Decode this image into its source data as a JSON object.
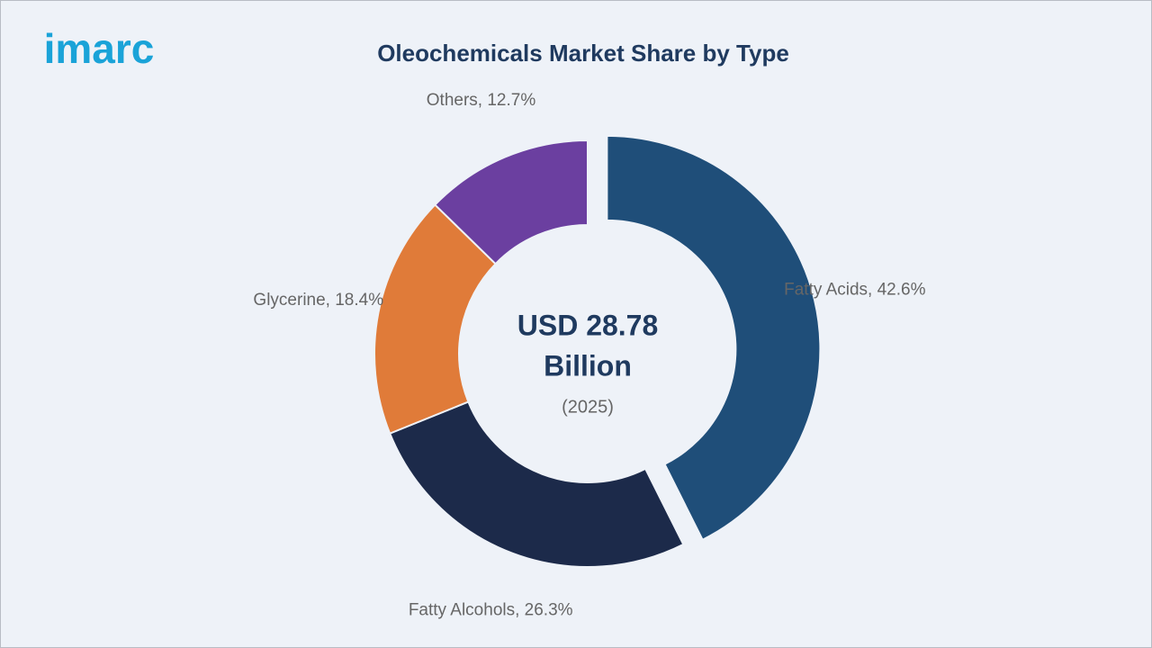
{
  "logo": "imarc",
  "chart_data": {
    "type": "donut",
    "title": "Oleochemicals Market Share by Type",
    "center_text": [
      "USD 28.78",
      "Billion"
    ],
    "center_subtext": "(2025)",
    "values": [
      42.6,
      26.3,
      18.4,
      12.7
    ],
    "value_labels": [
      "Fatty Acids, 42.6%",
      "Fatty Alcohols, 26.3%",
      "Glycerine, 18.4%",
      "Others, 12.7%"
    ],
    "colors": [
      "#1f4e79",
      "#1c2a4a",
      "#e07b39",
      "#6b3fa0"
    ],
    "exploded": [
      true,
      false,
      false,
      false
    ]
  }
}
